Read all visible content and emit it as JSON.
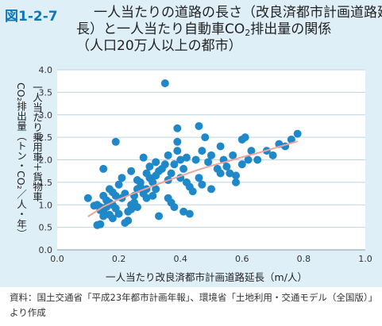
{
  "figure": {
    "number": "図1-2-7",
    "title_line1": "一人当たりの道路の長さ（改良済都市計画道路延",
    "title_line2_pre": "長）と一人当たり自動車CO",
    "title_line2_sub": "2",
    "title_line2_post": "排出量の関係",
    "title_line3": "（人口20万人以上の都市）"
  },
  "axes": {
    "ylabel_col1": "一人当たり乗用車＋貨物車",
    "ylabel_col2": "CO₂排出量（トン・CO₂／人・年）",
    "xlabel": "一人当たり改良済都市計画道路延長（m/人）"
  },
  "source": {
    "text": "資料：国土交通省「平成23年都市計画年報」、環境省「土地利用・交通モデル（全国版）」より作成"
  },
  "colors": {
    "point": "#1e88c8",
    "trend": "#f0a39a",
    "background": "#dfeff8",
    "plot": "#ffffff",
    "grid": "#bcd5e6",
    "title_accent": "#0b78b7"
  },
  "chart_data": {
    "type": "scatter",
    "xlabel": "一人当たり改良済都市計画道路延長（m/人）",
    "ylabel": "一人当たり乗用車＋貨物車CO₂排出量（トン・CO₂／人・年）",
    "xlim": [
      0.0,
      1.0
    ],
    "ylim": [
      0.0,
      4.0
    ],
    "x_ticks": [
      "0.0",
      "0.2",
      "0.4",
      "0.6",
      "0.8",
      "1.0"
    ],
    "y_ticks": [
      "0.0",
      "0.5",
      "1.0",
      "1.5",
      "2.0",
      "2.5",
      "3.0",
      "3.5",
      "4.0"
    ],
    "grid": "horizontal",
    "points": [
      [
        0.1,
        1.15
      ],
      [
        0.13,
        0.55
      ],
      [
        0.14,
        0.57
      ],
      [
        0.13,
        1.0
      ],
      [
        0.14,
        0.95
      ],
      [
        0.14,
        0.88
      ],
      [
        0.15,
        0.85
      ],
      [
        0.16,
        0.95
      ],
      [
        0.17,
        0.78
      ],
      [
        0.15,
        1.2
      ],
      [
        0.16,
        1.1
      ],
      [
        0.17,
        1.05
      ],
      [
        0.18,
        1.0
      ],
      [
        0.19,
        0.92
      ],
      [
        0.18,
        1.28
      ],
      [
        0.19,
        1.2
      ],
      [
        0.2,
        1.45
      ],
      [
        0.21,
        1.15
      ],
      [
        0.2,
        0.8
      ],
      [
        0.22,
        0.6
      ],
      [
        0.23,
        0.65
      ],
      [
        0.23,
        0.85
      ],
      [
        0.24,
        0.9
      ],
      [
        0.24,
        1.0
      ],
      [
        0.25,
        1.05
      ],
      [
        0.25,
        1.2
      ],
      [
        0.26,
        1.35
      ],
      [
        0.27,
        1.4
      ],
      [
        0.26,
        1.55
      ],
      [
        0.28,
        1.3
      ],
      [
        0.28,
        1.25
      ],
      [
        0.29,
        1.15
      ],
      [
        0.29,
        1.7
      ],
      [
        0.3,
        1.6
      ],
      [
        0.31,
        1.5
      ],
      [
        0.3,
        1.85
      ],
      [
        0.32,
        1.65
      ],
      [
        0.33,
        1.75
      ],
      [
        0.32,
        1.95
      ],
      [
        0.34,
        1.8
      ],
      [
        0.35,
        1.9
      ],
      [
        0.36,
        2.1
      ],
      [
        0.36,
        1.55
      ],
      [
        0.37,
        1.7
      ],
      [
        0.38,
        1.9
      ],
      [
        0.39,
        2.2
      ],
      [
        0.39,
        2.4
      ],
      [
        0.4,
        2.0
      ],
      [
        0.41,
        1.8
      ],
      [
        0.42,
        2.05
      ],
      [
        0.42,
        1.5
      ],
      [
        0.43,
        1.4
      ],
      [
        0.44,
        1.3
      ],
      [
        0.45,
        2.0
      ],
      [
        0.46,
        1.6
      ],
      [
        0.47,
        1.45
      ],
      [
        0.47,
        2.2
      ],
      [
        0.48,
        2.5
      ],
      [
        0.49,
        1.95
      ],
      [
        0.5,
        2.1
      ],
      [
        0.52,
        1.8
      ],
      [
        0.53,
        2.3
      ],
      [
        0.54,
        2.0
      ],
      [
        0.55,
        1.85
      ],
      [
        0.56,
        1.7
      ],
      [
        0.57,
        2.1
      ],
      [
        0.58,
        1.5
      ],
      [
        0.6,
        1.9
      ],
      [
        0.61,
        2.5
      ],
      [
        0.62,
        2.0
      ],
      [
        0.63,
        2.2
      ],
      [
        0.65,
        2.0
      ],
      [
        0.68,
        2.2
      ],
      [
        0.7,
        2.1
      ],
      [
        0.72,
        2.35
      ],
      [
        0.74,
        2.3
      ],
      [
        0.76,
        2.45
      ],
      [
        0.78,
        2.58
      ],
      [
        0.35,
        3.7
      ],
      [
        0.39,
        2.7
      ],
      [
        0.46,
        2.75
      ],
      [
        0.19,
        2.4
      ],
      [
        0.15,
        1.8
      ],
      [
        0.21,
        1.6
      ],
      [
        0.24,
        1.75
      ],
      [
        0.28,
        2.05
      ],
      [
        0.32,
        1.35
      ],
      [
        0.33,
        0.75
      ],
      [
        0.36,
        1.15
      ],
      [
        0.37,
        1.05
      ],
      [
        0.38,
        0.95
      ],
      [
        0.41,
        0.85
      ],
      [
        0.43,
        0.8
      ],
      [
        0.15,
        0.75
      ],
      [
        0.18,
        0.7
      ],
      [
        0.12,
        0.98
      ],
      [
        0.17,
        1.35
      ],
      [
        0.22,
        1.25
      ],
      [
        0.26,
        0.95
      ],
      [
        0.31,
        1.2
      ],
      [
        0.27,
        1.5
      ],
      [
        0.29,
        1.35
      ],
      [
        0.4,
        1.6
      ],
      [
        0.5,
        1.35
      ],
      [
        0.53,
        1.7
      ],
      [
        0.6,
        2.45
      ],
      [
        0.58,
        1.65
      ]
    ],
    "trendline": {
      "type": "logarithmic",
      "points": [
        [
          0.1,
          0.74
        ],
        [
          0.15,
          0.96
        ],
        [
          0.2,
          1.12
        ],
        [
          0.25,
          1.26
        ],
        [
          0.3,
          1.39
        ],
        [
          0.35,
          1.52
        ],
        [
          0.4,
          1.64
        ],
        [
          0.45,
          1.76
        ],
        [
          0.5,
          1.87
        ],
        [
          0.55,
          1.96
        ],
        [
          0.6,
          2.06
        ],
        [
          0.65,
          2.15
        ],
        [
          0.7,
          2.25
        ],
        [
          0.75,
          2.35
        ],
        [
          0.78,
          2.41
        ]
      ]
    }
  }
}
